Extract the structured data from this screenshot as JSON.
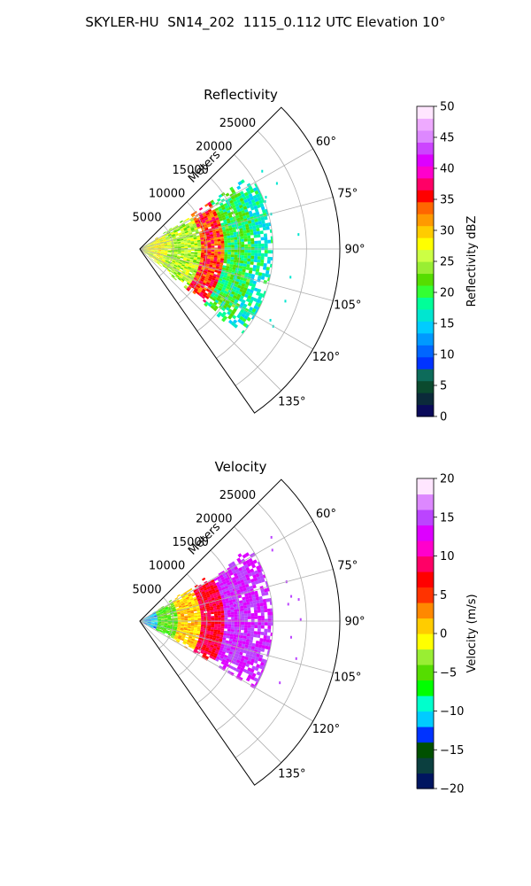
{
  "suptitle": "SKYLER-HU  SN14_202  1115_0.112 UTC Elevation 10°",
  "chart_data": [
    {
      "type": "heatmap",
      "subtype": "polar-sector-ppi",
      "title": "Reflectivity",
      "radial_label": "Meters",
      "theta_range_deg": [
        45,
        145
      ],
      "theta_ticks": [
        "60°",
        "75°",
        "90°",
        "105°",
        "120°",
        "135°"
      ],
      "theta_tick_values": [
        60,
        75,
        90,
        105,
        120,
        135
      ],
      "r_range": [
        0,
        30000
      ],
      "r_ticks": [
        "5000",
        "10000",
        "15000",
        "20000",
        "25000"
      ],
      "r_tick_values": [
        5000,
        10000,
        15000,
        20000,
        25000
      ],
      "grid": true,
      "colorbar": {
        "label": "Reflectivity dBZ",
        "range": [
          0,
          50
        ],
        "tick_values": [
          0,
          5,
          10,
          15,
          20,
          25,
          30,
          35,
          40,
          45,
          50
        ],
        "ticks": [
          "0",
          "5",
          "10",
          "15",
          "20",
          "25",
          "30",
          "35",
          "40",
          "45",
          "50"
        ]
      },
      "data_extent": {
        "theta_deg": [
          56,
          130
        ],
        "r_max": 20000
      },
      "dominant_value_bands": [
        {
          "r_range": [
            0,
            4000
          ],
          "value": 27
        },
        {
          "r_range": [
            4000,
            9000
          ],
          "value": 25
        },
        {
          "r_range": [
            9000,
            12500
          ],
          "value": 35
        },
        {
          "r_range": [
            12500,
            17000
          ],
          "value": 20
        },
        {
          "r_range": [
            17000,
            20000
          ],
          "value": 17
        }
      ]
    },
    {
      "type": "heatmap",
      "subtype": "polar-sector-ppi",
      "title": "Velocity",
      "radial_label": "Meters",
      "theta_range_deg": [
        45,
        145
      ],
      "theta_ticks": [
        "60°",
        "75°",
        "90°",
        "105°",
        "120°",
        "135°"
      ],
      "theta_tick_values": [
        60,
        75,
        90,
        105,
        120,
        135
      ],
      "r_range": [
        0,
        30000
      ],
      "r_ticks": [
        "5000",
        "10000",
        "15000",
        "20000",
        "25000"
      ],
      "r_tick_values": [
        5000,
        10000,
        15000,
        20000,
        25000
      ],
      "grid": true,
      "colorbar": {
        "label": "Velocity (m/s)",
        "range": [
          -20,
          20
        ],
        "tick_values": [
          -20,
          -15,
          -10,
          -5,
          0,
          5,
          10,
          15,
          20
        ],
        "ticks": [
          "−20",
          "−15",
          "−10",
          "−5",
          "0",
          "5",
          "10",
          "15",
          "20"
        ]
      },
      "data_extent": {
        "theta_deg": [
          56,
          120
        ],
        "r_max": 20000
      },
      "dominant_value_bands": [
        {
          "r_range": [
            0,
            2500
          ],
          "value": -11
        },
        {
          "r_range": [
            2500,
            5500
          ],
          "value": -5
        },
        {
          "r_range": [
            5500,
            9000
          ],
          "value": 1
        },
        {
          "r_range": [
            9000,
            12500
          ],
          "value": 8
        },
        {
          "r_range": [
            12500,
            20000
          ],
          "value": 14
        }
      ]
    }
  ],
  "colormaps": {
    "reflectivity": [
      "#0a0a5a",
      "#0b2a3a",
      "#0b4a2e",
      "#0d6b5a",
      "#0033ff",
      "#0066ff",
      "#0099ff",
      "#00ccff",
      "#00e6d0",
      "#00ff99",
      "#33ff33",
      "#55dd00",
      "#99ee33",
      "#ccff44",
      "#ffff00",
      "#ffcc00",
      "#ff9900",
      "#ff6600",
      "#ff0000",
      "#ff0066",
      "#ff00cc",
      "#dd00ff",
      "#cc44ff",
      "#dd88ff",
      "#eeaaff",
      "#ffe6ff"
    ],
    "velocity": [
      "#001560",
      "#0b3f3f",
      "#005000",
      "#0033ff",
      "#00ccff",
      "#00ffcc",
      "#00ff00",
      "#55dd00",
      "#99ee33",
      "#ffff00",
      "#ffcc00",
      "#ff8800",
      "#ff3300",
      "#ff0000",
      "#ff0066",
      "#ff00cc",
      "#dd00ff",
      "#bb44ff",
      "#dd88ff",
      "#ffe6ff"
    ]
  }
}
